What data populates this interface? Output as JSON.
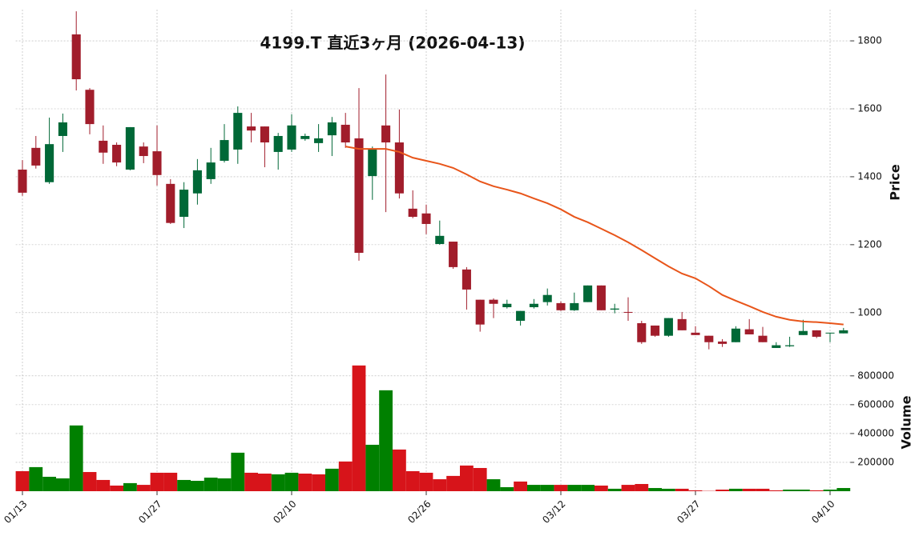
{
  "chart_data": {
    "type": "candlestick",
    "title": "4199.T  直近3ヶ月 (2026-04-13)",
    "categories": [
      "01/13",
      null,
      null,
      null,
      null,
      null,
      null,
      null,
      null,
      null,
      "01/27",
      null,
      null,
      null,
      null,
      null,
      null,
      null,
      null,
      null,
      "02/10",
      null,
      null,
      null,
      null,
      null,
      null,
      null,
      null,
      null,
      "02/26",
      null,
      null,
      null,
      null,
      null,
      null,
      null,
      null,
      null,
      "03/12",
      null,
      null,
      null,
      null,
      null,
      null,
      null,
      null,
      null,
      "03/27",
      null,
      null,
      null,
      null,
      null,
      null,
      null,
      null,
      null,
      "04/10",
      null
    ],
    "open": [
      1421,
      1485,
      1384,
      1520,
      1819,
      1656,
      1506,
      1494,
      1421,
      1489,
      1475,
      1379,
      1282,
      1351,
      1393,
      1447,
      1480,
      1548,
      1548,
      1473,
      1480,
      1511,
      1499,
      1522,
      1553,
      1513,
      1402,
      1551,
      1501,
      1306,
      1292,
      1202,
      1209,
      1127,
      1038,
      1038,
      1016,
      976,
      1016,
      1031,
      1028,
      1007,
      1031,
      1080,
      1009,
      1002,
      969,
      962,
      932,
      981,
      941,
      932,
      915,
      913,
      951,
      932,
      896,
      901,
      934,
      948,
      939,
      939
    ],
    "high": [
      1449,
      1520,
      1574,
      1586,
      1887,
      1661,
      1551,
      1501,
      1546,
      1501,
      1551,
      1393,
      1384,
      1452,
      1485,
      1555,
      1607,
      1588,
      1548,
      1529,
      1584,
      1527,
      1555,
      1576,
      1588,
      1661,
      1489,
      1701,
      1598,
      1360,
      1318,
      1271,
      1209,
      1134,
      1038,
      1042,
      1038,
      1005,
      1040,
      1071,
      1033,
      1059,
      1080,
      1080,
      1026,
      1045,
      976,
      962,
      984,
      1002,
      960,
      932,
      922,
      960,
      981,
      958,
      913,
      929,
      979,
      948,
      941,
      955
    ],
    "low": [
      1344,
      1424,
      1379,
      1473,
      1654,
      1525,
      1438,
      1431,
      1419,
      1440,
      1374,
      1261,
      1249,
      1318,
      1379,
      1442,
      1438,
      1501,
      1428,
      1421,
      1473,
      1506,
      1473,
      1461,
      1485,
      1153,
      1332,
      1296,
      1336,
      1278,
      1231,
      1200,
      1129,
      1009,
      944,
      984,
      1012,
      962,
      1012,
      1021,
      1005,
      1005,
      1031,
      1007,
      998,
      976,
      908,
      929,
      929,
      948,
      934,
      892,
      899,
      913,
      936,
      913,
      896,
      899,
      934,
      925,
      913,
      939
    ],
    "close": [
      1353,
      1433,
      1496,
      1560,
      1687,
      1555,
      1471,
      1442,
      1546,
      1461,
      1405,
      1264,
      1362,
      1419,
      1442,
      1508,
      1588,
      1536,
      1501,
      1520,
      1551,
      1520,
      1513,
      1560,
      1501,
      1176,
      1480,
      1501,
      1351,
      1282,
      1261,
      1226,
      1134,
      1068,
      965,
      1026,
      1026,
      1005,
      1026,
      1052,
      1007,
      1028,
      1080,
      1007,
      1012,
      1000,
      913,
      932,
      984,
      948,
      934,
      913,
      908,
      953,
      936,
      913,
      904,
      904,
      946,
      929,
      941,
      948
    ],
    "up_color": "#006837",
    "down_color": "#a11d2b",
    "ylim": [
      870,
      1892
    ],
    "yticks": [
      1000,
      1200,
      1400,
      1600,
      1800
    ],
    "ylabel": "Price",
    "grid": true,
    "moving_average": {
      "color": "#e8551a",
      "values": [
        null,
        null,
        null,
        null,
        null,
        null,
        null,
        null,
        null,
        null,
        null,
        null,
        null,
        null,
        null,
        null,
        null,
        null,
        null,
        null,
        null,
        null,
        null,
        null,
        1489,
        1482,
        1482,
        1482,
        1473,
        1456,
        1447,
        1438,
        1426,
        1407,
        1386,
        1372,
        1362,
        1351,
        1336,
        1322,
        1304,
        1282,
        1266,
        1247,
        1228,
        1207,
        1184,
        1160,
        1136,
        1115,
        1101,
        1078,
        1052,
        1035,
        1019,
        1002,
        988,
        979,
        974,
        972,
        969,
        965
      ]
    },
    "volume": {
      "values": [
        139000,
        167000,
        100000,
        89000,
        456000,
        133000,
        78000,
        39000,
        56000,
        44000,
        128000,
        128000,
        78000,
        72000,
        94000,
        89000,
        267000,
        128000,
        122000,
        117000,
        128000,
        122000,
        117000,
        156000,
        206000,
        872000,
        322000,
        700000,
        289000,
        139000,
        128000,
        83000,
        106000,
        178000,
        161000,
        83000,
        28000,
        67000,
        44000,
        44000,
        44000,
        44000,
        44000,
        39000,
        17000,
        44000,
        50000,
        22000,
        17000,
        17000,
        6000,
        2000,
        11000,
        17000,
        17000,
        17000,
        6000,
        11000,
        11000,
        6000,
        11000,
        22000
      ],
      "up_color": "#008000",
      "down_color": "#d7141a",
      "ylim": [
        0,
        910000
      ],
      "yticks": [
        200000,
        400000,
        600000,
        800000
      ],
      "ylabel": "Volume"
    }
  }
}
